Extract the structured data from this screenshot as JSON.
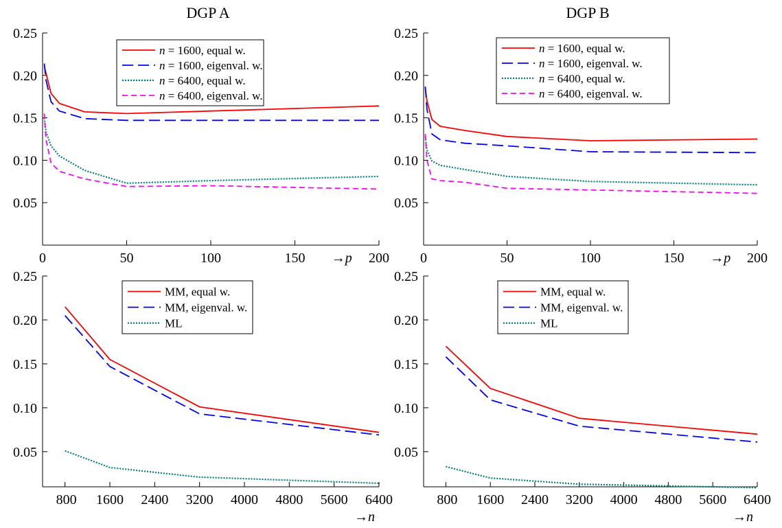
{
  "chart_data": [
    {
      "type": "line",
      "title": "DGP A",
      "xlabel": "p",
      "x_ticks": [
        0,
        50,
        100,
        150,
        200
      ],
      "y_ticks": [
        0.05,
        0.1,
        0.15,
        0.2,
        0.25
      ],
      "xlim": [
        0,
        200
      ],
      "ylim": [
        0,
        0.25
      ],
      "legend": "top-center",
      "grid": false,
      "series": [
        {
          "name": "n = 1600, equal w.",
          "color": "#ff0000",
          "style": "solid",
          "x": [
            1,
            2,
            5,
            10,
            25,
            50,
            100,
            200
          ],
          "y": [
            0.211,
            0.203,
            0.179,
            0.167,
            0.157,
            0.155,
            0.158,
            0.164
          ]
        },
        {
          "name": "n = 1600, eigenval. w.",
          "color": "#0000ff",
          "style": "longdash",
          "x": [
            1,
            2,
            5,
            10,
            25,
            50,
            100,
            200
          ],
          "y": [
            0.214,
            0.195,
            0.169,
            0.158,
            0.149,
            0.147,
            0.147,
            0.147
          ]
        },
        {
          "name": "n = 6400, equal w.",
          "color": "#008080",
          "style": "dotted",
          "x": [
            1,
            2,
            5,
            10,
            25,
            50,
            100,
            200
          ],
          "y": [
            0.15,
            0.134,
            0.117,
            0.105,
            0.088,
            0.073,
            0.076,
            0.081
          ]
        },
        {
          "name": "n = 6400, eigenval. w.",
          "color": "#ff00ff",
          "style": "dash",
          "x": [
            1,
            2,
            5,
            10,
            25,
            50,
            100,
            200
          ],
          "y": [
            0.155,
            0.125,
            0.097,
            0.087,
            0.078,
            0.069,
            0.07,
            0.066
          ]
        }
      ]
    },
    {
      "type": "line",
      "title": "DGP B",
      "xlabel": "p",
      "x_ticks": [
        0,
        50,
        100,
        150,
        200
      ],
      "y_ticks": [
        0.05,
        0.1,
        0.15,
        0.2,
        0.25
      ],
      "xlim": [
        0,
        200
      ],
      "ylim": [
        0,
        0.25
      ],
      "legend": "top-center",
      "grid": false,
      "series": [
        {
          "name": "n = 1600, equal w.",
          "color": "#ff0000",
          "style": "solid",
          "x": [
            1,
            2,
            5,
            10,
            25,
            50,
            100,
            200
          ],
          "y": [
            0.185,
            0.17,
            0.148,
            0.14,
            0.135,
            0.128,
            0.123,
            0.125
          ]
        },
        {
          "name": "n = 1600, eigenval. w.",
          "color": "#0000ff",
          "style": "longdash",
          "x": [
            1,
            2,
            5,
            10,
            25,
            50,
            100,
            200
          ],
          "y": [
            0.187,
            0.16,
            0.131,
            0.124,
            0.12,
            0.117,
            0.11,
            0.109
          ]
        },
        {
          "name": "n = 6400, equal w.",
          "color": "#008080",
          "style": "dotted",
          "x": [
            1,
            2,
            5,
            10,
            25,
            50,
            100,
            200
          ],
          "y": [
            0.128,
            0.112,
            0.099,
            0.094,
            0.089,
            0.081,
            0.075,
            0.071
          ]
        },
        {
          "name": "n = 6400, eigenval. w.",
          "color": "#ff00ff",
          "style": "dash",
          "x": [
            1,
            2,
            5,
            10,
            25,
            50,
            100,
            200
          ],
          "y": [
            0.131,
            0.1,
            0.078,
            0.076,
            0.074,
            0.067,
            0.065,
            0.061
          ]
        }
      ]
    },
    {
      "type": "line",
      "title": "",
      "xlabel": "n",
      "x_ticks": [
        800,
        1600,
        2400,
        3200,
        4000,
        4800,
        5600,
        6400
      ],
      "y_ticks": [
        0.05,
        0.1,
        0.15,
        0.2,
        0.25
      ],
      "xlim": [
        400,
        6400
      ],
      "ylim": [
        0.01,
        0.25
      ],
      "legend": "top-center",
      "grid": false,
      "series": [
        {
          "name": "MM, equal w.",
          "color": "#ff0000",
          "style": "solid",
          "x": [
            800,
            1600,
            3200,
            6400
          ],
          "y": [
            0.215,
            0.155,
            0.101,
            0.072
          ]
        },
        {
          "name": "MM, eigenval. w.",
          "color": "#0000ff",
          "style": "longdash",
          "x": [
            800,
            1600,
            3200,
            6400
          ],
          "y": [
            0.205,
            0.147,
            0.093,
            0.069
          ]
        },
        {
          "name": "ML",
          "color": "#008080",
          "style": "dotted",
          "x": [
            800,
            1600,
            3200,
            6400
          ],
          "y": [
            0.051,
            0.032,
            0.021,
            0.014
          ]
        }
      ]
    },
    {
      "type": "line",
      "title": "",
      "xlabel": "n",
      "x_ticks": [
        800,
        1600,
        2400,
        3200,
        4000,
        4800,
        5600,
        6400
      ],
      "y_ticks": [
        0.05,
        0.1,
        0.15,
        0.2,
        0.25
      ],
      "xlim": [
        400,
        6400
      ],
      "ylim": [
        0.01,
        0.25
      ],
      "legend": "top-center",
      "grid": false,
      "series": [
        {
          "name": "MM, equal w.",
          "color": "#ff0000",
          "style": "solid",
          "x": [
            800,
            1600,
            3200,
            6400
          ],
          "y": [
            0.17,
            0.122,
            0.088,
            0.07
          ]
        },
        {
          "name": "MM, eigenval. w.",
          "color": "#0000ff",
          "style": "longdash",
          "x": [
            800,
            1600,
            3200,
            6400
          ],
          "y": [
            0.158,
            0.109,
            0.079,
            0.061
          ]
        },
        {
          "name": "ML",
          "color": "#008080",
          "style": "dotted",
          "x": [
            800,
            1600,
            3200,
            6400
          ],
          "y": [
            0.033,
            0.02,
            0.013,
            0.009
          ]
        }
      ]
    }
  ]
}
